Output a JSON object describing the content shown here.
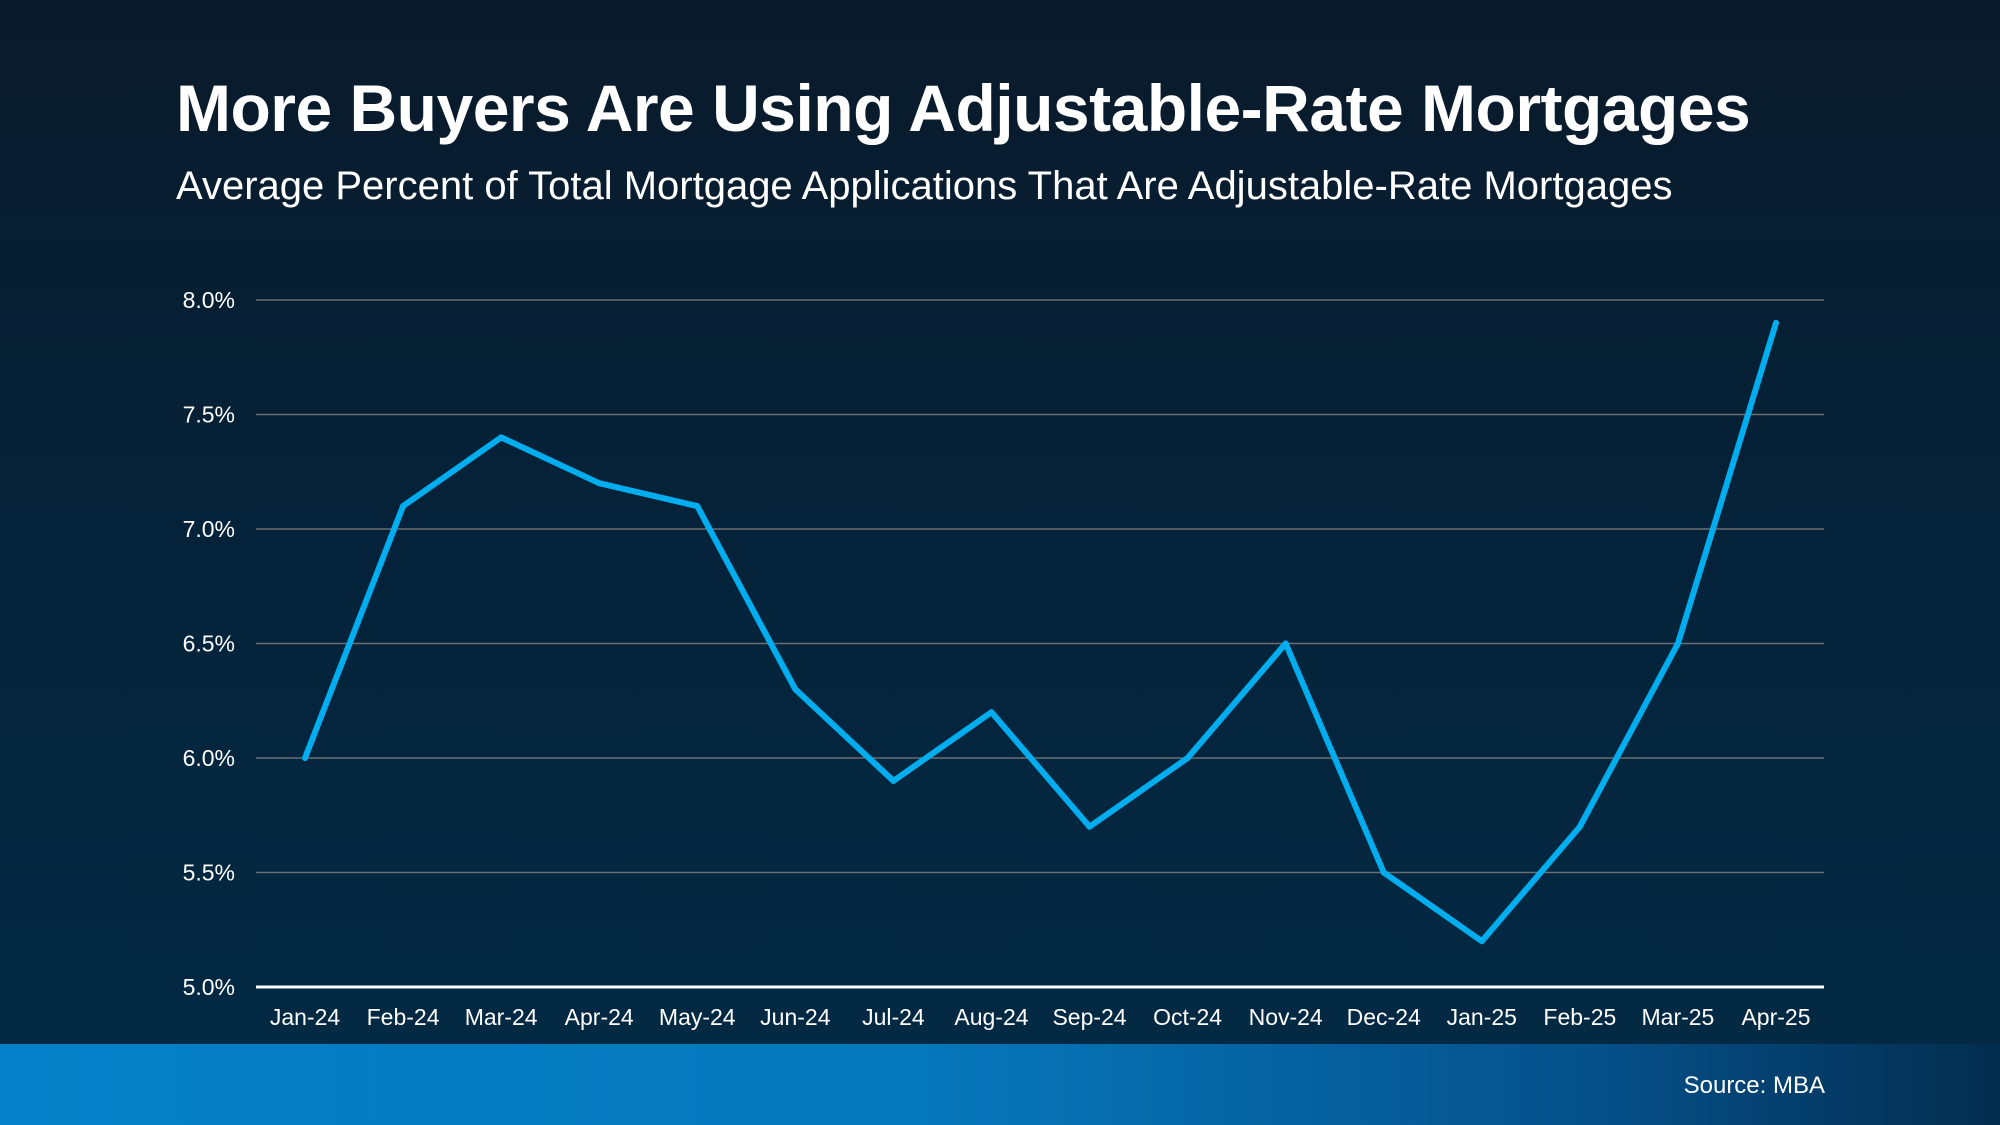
{
  "chart_data": {
    "type": "line",
    "title": "More Buyers Are Using Adjustable-Rate Mortgages",
    "subtitle": "Average Percent of Total Mortgage Applications That Are Adjustable-Rate Mortgages",
    "categories": [
      "Jan-24",
      "Feb-24",
      "Mar-24",
      "Apr-24",
      "May-24",
      "Jun-24",
      "Jul-24",
      "Aug-24",
      "Sep-24",
      "Oct-24",
      "Nov-24",
      "Dec-24",
      "Jan-25",
      "Feb-25",
      "Mar-25",
      "Apr-25"
    ],
    "values": [
      6.0,
      7.1,
      7.4,
      7.2,
      7.1,
      6.3,
      5.9,
      6.2,
      5.7,
      6.0,
      6.5,
      5.5,
      5.2,
      5.7,
      6.5,
      7.9
    ],
    "ylim": [
      5.0,
      8.0
    ],
    "yticks": [
      "5.0%",
      "5.5%",
      "6.0%",
      "6.5%",
      "7.0%",
      "7.5%",
      "8.0%"
    ],
    "xlabel": "",
    "ylabel": "",
    "grid": true,
    "line_color": "#00aeef",
    "grid_color": "#6b6e70",
    "source": "Source: MBA"
  }
}
